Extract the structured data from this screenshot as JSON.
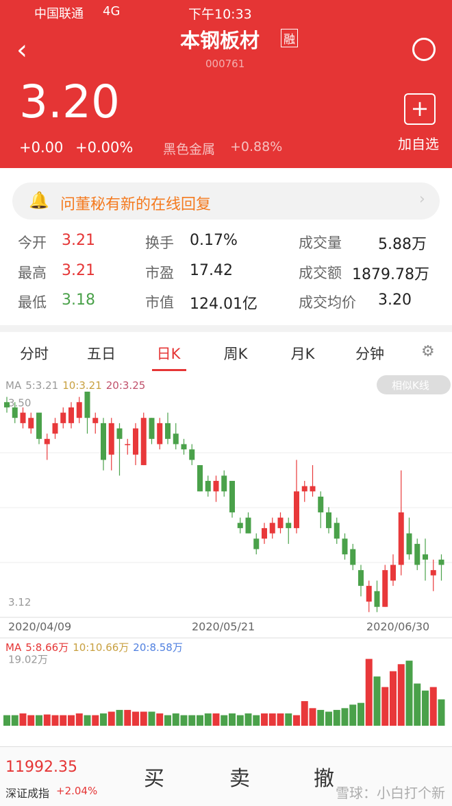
{
  "status": {
    "carrier": "中国联通",
    "network": "4G",
    "time": "下午10:33"
  },
  "header": {
    "name": "本钢板材",
    "badge": "融",
    "code": "000761",
    "price": "3.20",
    "change": "+0.00",
    "change_pct": "+0.00%",
    "sector": "黑色金属",
    "sector_pct": "+0.88%",
    "add": "加自选"
  },
  "banner": "问董秘有新的在线回复",
  "stats": [
    [
      {
        "label": "今开",
        "value": "3.21"
      },
      {
        "label": "换手",
        "value": "0.17%"
      },
      {
        "label": "成交量",
        "value": "5.88万"
      }
    ],
    [
      {
        "label": "最高",
        "value": "3.21"
      },
      {
        "label": "市盈",
        "value": "17.42"
      },
      {
        "label": "成交额",
        "value": "1879.78万"
      }
    ],
    [
      {
        "label": "最低",
        "value": "3.18"
      },
      {
        "label": "市值",
        "value": "124.01亿"
      },
      {
        "label": "成交均价",
        "value": "3.20"
      }
    ]
  ],
  "tabs": [
    "分时",
    "五日",
    "日K",
    "周K",
    "月K",
    "分钟"
  ],
  "similar": "相似K线",
  "chart_data": {
    "type": "candlestick",
    "legend": [
      "MA",
      "5:3.21",
      "10:3.21",
      "20:3.25"
    ],
    "x_labels": [
      "2020/04/09",
      "2020/05/21",
      "2020/06/30"
    ],
    "ylim": [
      3.09,
      3.55
    ],
    "yticks": [
      {
        "value": 3.5,
        "label": "3.50"
      },
      3.12
    ],
    "up_color": "#e8383a",
    "down_color": "#4aa14a",
    "open": [
      3.5,
      3.49,
      3.46,
      3.45,
      3.48,
      3.42,
      3.44,
      3.46,
      3.46,
      3.47,
      3.52,
      3.46,
      3.46,
      3.4,
      3.45,
      3.42,
      3.4,
      3.38,
      3.47,
      3.42,
      3.46,
      3.44,
      3.42,
      3.41,
      3.38,
      3.35,
      3.33,
      3.36,
      3.35,
      3.27,
      3.28,
      3.24,
      3.24,
      3.25,
      3.26,
      3.27,
      3.26,
      3.33,
      3.33,
      3.32,
      3.29,
      3.27,
      3.24,
      3.22,
      3.18,
      3.12,
      3.14,
      3.11,
      3.16,
      3.19,
      3.25,
      3.23,
      3.21,
      3.17,
      3.2
    ],
    "close": [
      3.49,
      3.47,
      3.48,
      3.47,
      3.43,
      3.43,
      3.46,
      3.48,
      3.49,
      3.5,
      3.47,
      3.47,
      3.39,
      3.46,
      3.43,
      3.42,
      3.45,
      3.47,
      3.43,
      3.46,
      3.43,
      3.42,
      3.41,
      3.39,
      3.33,
      3.33,
      3.35,
      3.33,
      3.29,
      3.26,
      3.25,
      3.22,
      3.26,
      3.27,
      3.28,
      3.26,
      3.33,
      3.34,
      3.34,
      3.29,
      3.26,
      3.24,
      3.21,
      3.19,
      3.15,
      3.15,
      3.11,
      3.18,
      3.19,
      3.29,
      3.21,
      3.19,
      3.2,
      3.18,
      3.19
    ],
    "high": [
      3.51,
      3.5,
      3.49,
      3.48,
      3.48,
      3.44,
      3.47,
      3.49,
      3.5,
      3.51,
      3.52,
      3.48,
      3.47,
      3.47,
      3.46,
      3.43,
      3.46,
      3.48,
      3.47,
      3.47,
      3.48,
      3.46,
      3.43,
      3.42,
      3.38,
      3.36,
      3.36,
      3.37,
      3.35,
      3.28,
      3.29,
      3.25,
      3.27,
      3.28,
      3.29,
      3.28,
      3.39,
      3.35,
      3.38,
      3.33,
      3.3,
      3.28,
      3.25,
      3.23,
      3.19,
      3.16,
      3.16,
      3.19,
      3.21,
      3.37,
      3.28,
      3.24,
      3.24,
      3.2,
      3.21
    ],
    "low": [
      3.48,
      3.46,
      3.45,
      3.44,
      3.42,
      3.39,
      3.43,
      3.45,
      3.45,
      3.46,
      3.44,
      3.44,
      3.37,
      3.37,
      3.36,
      3.4,
      3.38,
      3.38,
      3.42,
      3.41,
      3.42,
      3.41,
      3.4,
      3.38,
      3.33,
      3.32,
      3.31,
      3.32,
      3.28,
      3.25,
      3.25,
      3.21,
      3.23,
      3.24,
      3.25,
      3.23,
      3.25,
      3.31,
      3.32,
      3.26,
      3.25,
      3.23,
      3.2,
      3.18,
      3.13,
      3.1,
      3.1,
      3.11,
      3.15,
      3.17,
      3.2,
      3.18,
      3.16,
      3.14,
      3.16
    ],
    "volume": {
      "legend": [
        "MA",
        "5:8.66万",
        "10:10.66万",
        "20:8.58万"
      ],
      "ylim": [
        0,
        19.5
      ],
      "yticks": [
        {
          "value": 19.02,
          "label": "19.02万"
        }
      ],
      "values": [
        3,
        3,
        3.5,
        3,
        3,
        3.2,
        3,
        3,
        3,
        3.5,
        3,
        3,
        3.5,
        4,
        4.5,
        4.5,
        4,
        4,
        4,
        3.5,
        3,
        3.5,
        3,
        3,
        3,
        3.5,
        3.5,
        3,
        3.5,
        3,
        3.5,
        3,
        3.5,
        3.5,
        3.5,
        3.5,
        3,
        7,
        5,
        4.5,
        4,
        4.5,
        5,
        6,
        6.5,
        19,
        14,
        11,
        15.5,
        17.5,
        18.5,
        12,
        10,
        11,
        7.5
      ]
    }
  },
  "footer": {
    "index_value": "11992.35",
    "index_name": "深证成指",
    "index_pct": "+2.04%",
    "buy": "买",
    "sell": "卖",
    "cancel": "撤"
  },
  "watermark": "雪球：小白打个新"
}
